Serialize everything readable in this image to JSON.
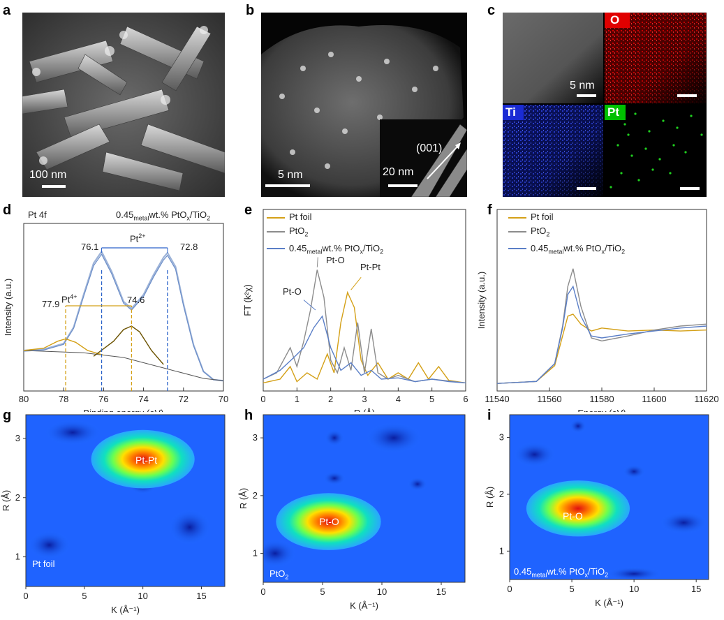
{
  "panels": {
    "a": {
      "letter": "a",
      "scale_label": "100 nm"
    },
    "b": {
      "letter": "b",
      "scale_label": "5 nm",
      "inset_scale_label": "20 nm",
      "inset_direction": "(001)"
    },
    "c": {
      "letter": "c",
      "scale_label": "5 nm",
      "maps": [
        "O",
        "Ti",
        "Pt"
      ],
      "map_colors": {
        "O": "#e00000",
        "Ti": "#1a2bd4",
        "Pt": "#00c000"
      }
    },
    "d": {
      "letter": "d",
      "corner_label": "Pt 4f",
      "sample_label_pre": "0.45",
      "sample_label_sub": "metal",
      "sample_label_mid": "wt.% PtO",
      "sample_label_x": "x",
      "sample_label_post": "/TiO",
      "sample_label_2": "2",
      "annotations": {
        "peak1": "76.1",
        "peak2": "72.8",
        "peak3": "77.9",
        "peak4": "74.6",
        "pt2": "Pt",
        "pt2_sup": "2+",
        "pt4": "Pt",
        "pt4_sup": "4+"
      }
    },
    "e": {
      "letter": "e",
      "annotations": {
        "pto1": "Pt-O",
        "pto2": "Pt-O",
        "ptpt": "Pt-Pt"
      }
    },
    "f": {
      "letter": "f"
    },
    "g": {
      "letter": "g",
      "center_label": "Pt-Pt",
      "corner_label": "Pt foil"
    },
    "h": {
      "letter": "h",
      "center_label": "Pt-O",
      "corner_label": "PtO",
      "corner_sub": "2"
    },
    "i": {
      "letter": "i",
      "center_label": "Pt-O",
      "corner_label_pre": "0.45",
      "corner_sub": "metal",
      "corner_label_mid": "wt.% PtO",
      "corner_x": "x",
      "corner_post": "/TiO",
      "corner_2": "2"
    }
  },
  "legend": {
    "items": [
      "Pt foil",
      "PtO",
      "0.45"
    ],
    "pto2_sub": "2",
    "sample_sub": "metal",
    "sample_mid": "wt.% PtO",
    "sample_x": "x",
    "sample_post": "/TiO",
    "sample_2": "2",
    "colors": {
      "pt_foil": "#d4a017",
      "pto2": "#8c8c8c",
      "sample": "#5b7fc7"
    }
  },
  "chart_data": [
    {
      "type": "line",
      "panel": "d",
      "xlabel": "Binding energy (eV)",
      "ylabel": "Intensity (a.u.)",
      "xlim": [
        80,
        70
      ],
      "xticks": [
        80,
        78,
        76,
        74,
        72,
        70
      ],
      "series": [
        {
          "x": [
            80,
            79,
            78,
            77.5,
            77,
            76.5,
            76.1,
            75.6,
            75,
            74.6,
            74,
            73.5,
            73,
            72.8,
            72.4,
            72,
            71.5,
            71,
            70.5,
            70
          ],
          "values": [
            0.3,
            0.31,
            0.36,
            0.5,
            0.78,
            1.05,
            1.15,
            0.98,
            0.72,
            0.66,
            0.78,
            0.95,
            1.1,
            1.14,
            1.02,
            0.7,
            0.35,
            0.12,
            0.05,
            0.04
          ]
        }
      ],
      "markers": [
        77.9,
        76.1,
        74.6,
        72.8
      ]
    },
    {
      "type": "line",
      "panel": "e",
      "xlabel": "R (Å)",
      "ylabel": "FT (k²χ)",
      "xlim": [
        0,
        6
      ],
      "xticks": [
        0,
        1,
        2,
        3,
        4,
        5,
        6
      ],
      "series": [
        {
          "name": "Pt foil",
          "x": [
            0,
            0.5,
            0.8,
            1.0,
            1.3,
            1.6,
            1.9,
            2.1,
            2.3,
            2.5,
            2.7,
            2.9,
            3.1,
            3.4,
            3.7,
            4.0,
            4.3,
            4.6,
            4.9,
            5.2,
            5.5,
            6.0
          ],
          "values": [
            0.02,
            0.05,
            0.15,
            0.03,
            0.1,
            0.05,
            0.25,
            0.1,
            0.5,
            0.74,
            0.62,
            0.2,
            0.08,
            0.18,
            0.05,
            0.1,
            0.05,
            0.18,
            0.05,
            0.15,
            0.04,
            0.02
          ]
        },
        {
          "name": "PtO2",
          "x": [
            0,
            0.4,
            0.8,
            1.0,
            1.2,
            1.4,
            1.6,
            1.8,
            2.0,
            2.2,
            2.4,
            2.6,
            2.8,
            3.0,
            3.2,
            3.4,
            3.7,
            4.0,
            4.5,
            5.0,
            6.0
          ],
          "values": [
            0.05,
            0.1,
            0.3,
            0.15,
            0.35,
            0.6,
            0.92,
            0.7,
            0.2,
            0.1,
            0.3,
            0.12,
            0.5,
            0.1,
            0.45,
            0.1,
            0.05,
            0.08,
            0.03,
            0.05,
            0.02
          ]
        },
        {
          "name": "0.45metalwt.% PtOx/TiO2",
          "x": [
            0,
            0.5,
            0.9,
            1.2,
            1.5,
            1.75,
            2.0,
            2.3,
            2.6,
            2.9,
            3.2,
            3.5,
            4.0,
            4.5,
            5.0,
            5.5,
            6.0
          ],
          "values": [
            0.05,
            0.12,
            0.22,
            0.3,
            0.46,
            0.55,
            0.3,
            0.12,
            0.18,
            0.08,
            0.12,
            0.05,
            0.06,
            0.03,
            0.05,
            0.03,
            0.02
          ]
        }
      ]
    },
    {
      "type": "line",
      "panel": "f",
      "xlabel": "Energy (eV)",
      "ylabel": "Intensity (a.u.)",
      "xlim": [
        11540,
        11620
      ],
      "xticks": [
        11540,
        11560,
        11580,
        11600,
        11620
      ],
      "series": [
        {
          "name": "Pt foil",
          "x": [
            11540,
            11555,
            11562,
            11565,
            11567,
            11569,
            11572,
            11576,
            11580,
            11590,
            11600,
            11610,
            11620
          ],
          "values": [
            0.02,
            0.04,
            0.2,
            0.5,
            0.7,
            0.72,
            0.62,
            0.55,
            0.58,
            0.55,
            0.56,
            0.55,
            0.56
          ]
        },
        {
          "name": "PtO2",
          "x": [
            11540,
            11555,
            11562,
            11565,
            11567,
            11569,
            11572,
            11576,
            11580,
            11590,
            11600,
            11610,
            11620
          ],
          "values": [
            0.02,
            0.04,
            0.22,
            0.6,
            1.0,
            1.18,
            0.8,
            0.48,
            0.45,
            0.5,
            0.56,
            0.6,
            0.62
          ]
        },
        {
          "name": "0.45metalwt.% PtOx/TiO2",
          "x": [
            11540,
            11555,
            11562,
            11565,
            11567,
            11569,
            11572,
            11576,
            11580,
            11590,
            11600,
            11610,
            11620
          ],
          "values": [
            0.02,
            0.04,
            0.22,
            0.58,
            0.92,
            1.0,
            0.7,
            0.5,
            0.48,
            0.52,
            0.55,
            0.58,
            0.6
          ]
        }
      ]
    },
    {
      "type": "heatmap",
      "panel": "g",
      "xlabel": "K (Å⁻¹)",
      "ylabel": "R (Å)",
      "xlim": [
        0,
        17
      ],
      "ylim": [
        0.5,
        3.4
      ],
      "xticks": [
        0,
        5,
        10,
        15
      ],
      "yticks": [
        1,
        2,
        3
      ],
      "peak": {
        "x": 10,
        "y": 2.65
      }
    },
    {
      "type": "heatmap",
      "panel": "h",
      "xlabel": "K (Å⁻¹)",
      "ylabel": "R (Å)",
      "xlim": [
        0,
        17
      ],
      "ylim": [
        0.5,
        3.4
      ],
      "xticks": [
        0,
        5,
        10,
        15
      ],
      "yticks": [
        1,
        2,
        3
      ],
      "peak": {
        "x": 5.5,
        "y": 1.55
      }
    },
    {
      "type": "heatmap",
      "panel": "i",
      "xlabel": "K (Å⁻¹)",
      "ylabel": "R (Å)",
      "xlim": [
        0,
        16
      ],
      "ylim": [
        0.5,
        3.4
      ],
      "xticks": [
        0,
        5,
        10,
        15
      ],
      "yticks": [
        1,
        2,
        3
      ],
      "peak": {
        "x": 5.5,
        "y": 1.75
      }
    }
  ]
}
